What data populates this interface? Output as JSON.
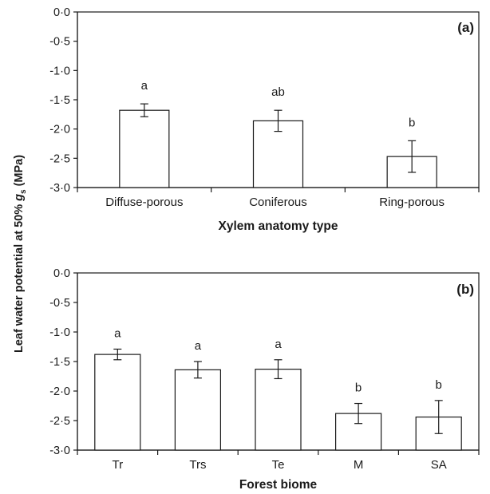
{
  "y_axis_label": {
    "prefix": "Leaf water potential at 50% ",
    "symbol": "g",
    "subscript": "s",
    "suffix": " (MPa)"
  },
  "chart_data": [
    {
      "type": "bar",
      "panel_label": "(a)",
      "xlabel": "Xylem anatomy type",
      "categories": [
        "Diffuse-porous",
        "Coniferous",
        "Ring-porous"
      ],
      "values": [
        -1.68,
        -1.86,
        -2.47
      ],
      "error": [
        0.11,
        0.18,
        0.27
      ],
      "significance": [
        "a",
        "ab",
        "b"
      ],
      "ylim": [
        -3.0,
        0.0
      ],
      "yticks": [
        0.0,
        -0.5,
        -1.0,
        -1.5,
        -2.0,
        -2.5,
        -3.0
      ],
      "ytick_labels": [
        "0·0",
        "-0·5",
        "-1·0",
        "-1·5",
        "-2·0",
        "-2·5",
        "-3·0"
      ],
      "grid": false
    },
    {
      "type": "bar",
      "panel_label": "(b)",
      "xlabel": "Forest biome",
      "categories": [
        "Tr",
        "Trs",
        "Te",
        "M",
        "SA"
      ],
      "values": [
        -1.38,
        -1.64,
        -1.63,
        -2.38,
        -2.44
      ],
      "error": [
        0.09,
        0.14,
        0.16,
        0.17,
        0.28
      ],
      "significance": [
        "a",
        "a",
        "a",
        "b",
        "b"
      ],
      "ylim": [
        -3.0,
        0.0
      ],
      "yticks": [
        0.0,
        -0.5,
        -1.0,
        -1.5,
        -2.0,
        -2.5,
        -3.0
      ],
      "ytick_labels": [
        "0·0",
        "-0·5",
        "-1·0",
        "-1·5",
        "-2·0",
        "-2·5",
        "-3·0"
      ],
      "grid": false
    }
  ]
}
